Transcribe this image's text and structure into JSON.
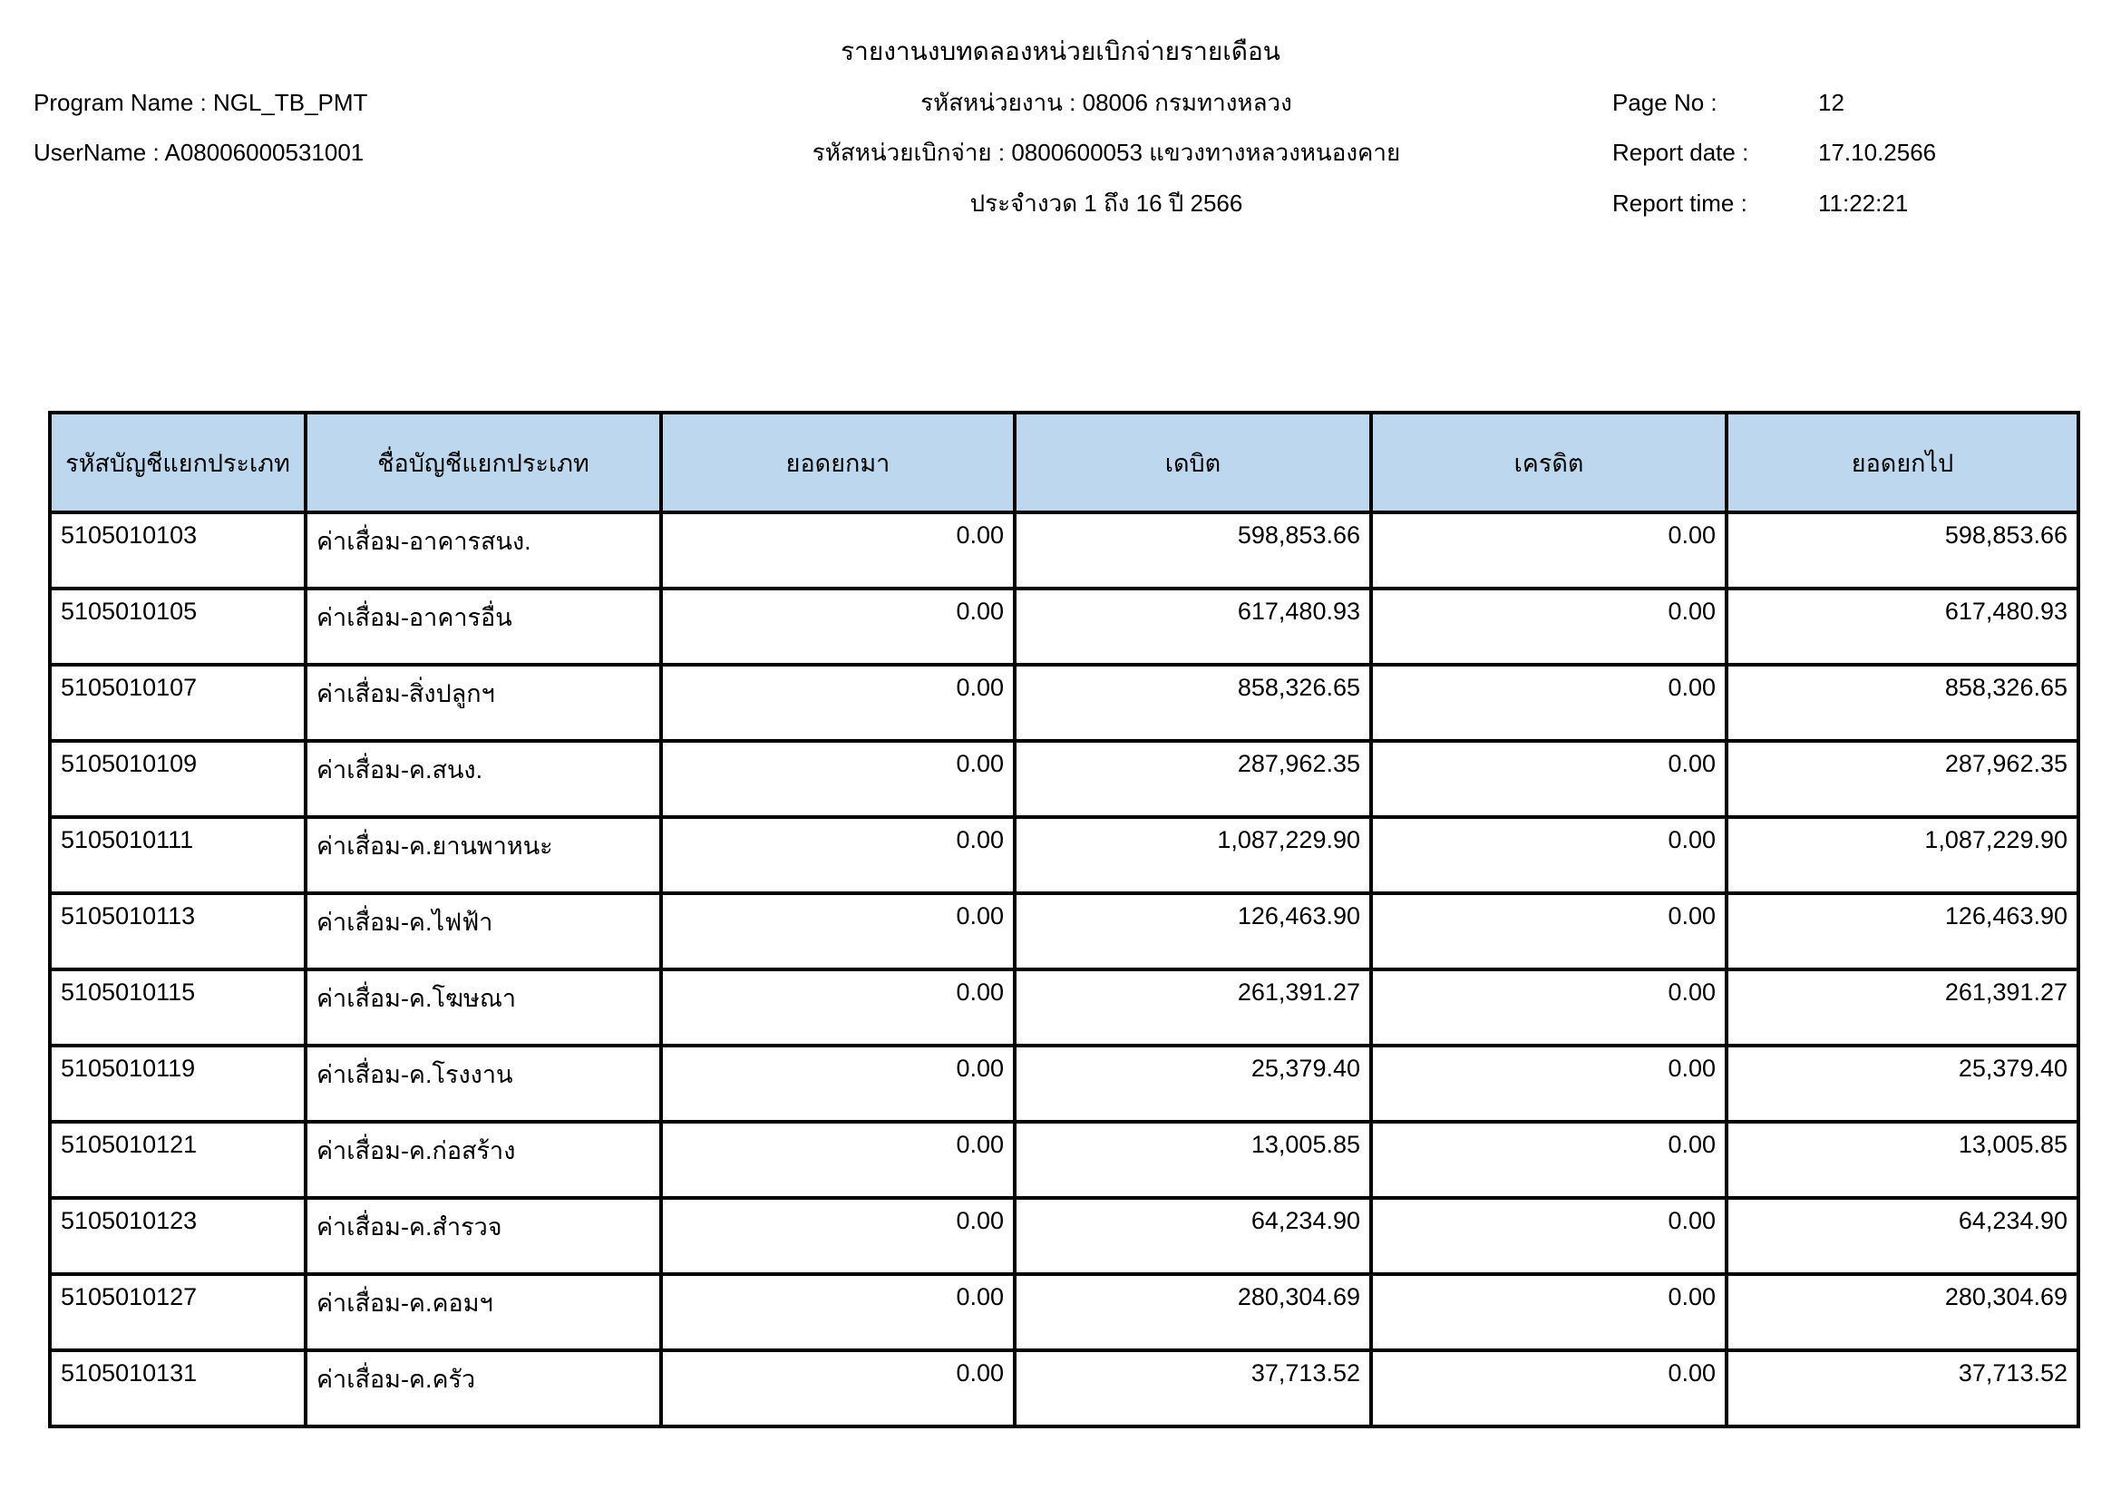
{
  "title": "รายงานงบทดลองหน่วยเบิกจ่ายรายเดือน",
  "meta": {
    "program_line": "Program Name : NGL_TB_PMT",
    "user_line": "UserName : A08006000531001",
    "agency_line": "รหัสหน่วยงาน : 08006 กรมทางหลวง",
    "unit_line": "รหัสหน่วยเบิกจ่าย : 0800600053 แขวงทางหลวงหนองคาย",
    "period_line": "ประจำงวด 1 ถึง 16 ปี 2566",
    "page_label": "Page No :",
    "page_value": "12",
    "report_date_label": "Report date :",
    "report_date_value": "17.10.2566",
    "report_time_label": "Report time :",
    "report_time_value": "11:22:21"
  },
  "table": {
    "headers": [
      "รหัสบัญชีแยกประเภท",
      "ชื่อบัญชีแยกประเภท",
      "ยอดยกมา",
      "เดบิต",
      "เครดิต",
      "ยอดยกไป"
    ],
    "rows": [
      [
        "5105010103",
        "ค่าเสื่อม-อาคารสนง.",
        "0.00",
        "598,853.66",
        "0.00",
        "598,853.66"
      ],
      [
        "5105010105",
        "ค่าเสื่อม-อาคารอื่น",
        "0.00",
        "617,480.93",
        "0.00",
        "617,480.93"
      ],
      [
        "5105010107",
        "ค่าเสื่อม-สิ่งปลูกฯ",
        "0.00",
        "858,326.65",
        "0.00",
        "858,326.65"
      ],
      [
        "5105010109",
        "ค่าเสื่อม-ค.สนง.",
        "0.00",
        "287,962.35",
        "0.00",
        "287,962.35"
      ],
      [
        "5105010111",
        "ค่าเสื่อม-ค.ยานพาหนะ",
        "0.00",
        "1,087,229.90",
        "0.00",
        "1,087,229.90"
      ],
      [
        "5105010113",
        "ค่าเสื่อม-ค.ไฟฟ้า",
        "0.00",
        "126,463.90",
        "0.00",
        "126,463.90"
      ],
      [
        "5105010115",
        "ค่าเสื่อม-ค.โฆษณา",
        "0.00",
        "261,391.27",
        "0.00",
        "261,391.27"
      ],
      [
        "5105010119",
        "ค่าเสื่อม-ค.โรงงาน",
        "0.00",
        "25,379.40",
        "0.00",
        "25,379.40"
      ],
      [
        "5105010121",
        "ค่าเสื่อม-ค.ก่อสร้าง",
        "0.00",
        "13,005.85",
        "0.00",
        "13,005.85"
      ],
      [
        "5105010123",
        "ค่าเสื่อม-ค.สำรวจ",
        "0.00",
        "64,234.90",
        "0.00",
        "64,234.90"
      ],
      [
        "5105010127",
        "ค่าเสื่อม-ค.คอมฯ",
        "0.00",
        "280,304.69",
        "0.00",
        "280,304.69"
      ],
      [
        "5105010131",
        "ค่าเสื่อม-ค.ครัว",
        "0.00",
        "37,713.52",
        "0.00",
        "37,713.52"
      ]
    ]
  },
  "colors": {
    "header_fill": "#BDD7EE",
    "border": "#000000",
    "text": "#000000",
    "background": "#FFFFFF"
  }
}
